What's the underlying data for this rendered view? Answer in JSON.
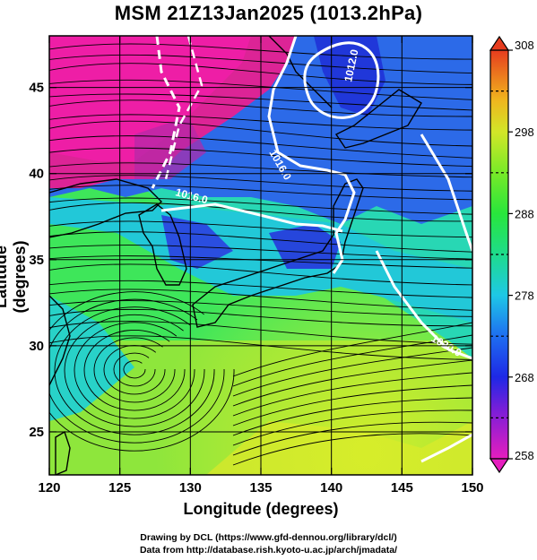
{
  "title": "MSM 21Z13Jan2025 (1013.2hPa)",
  "axes": {
    "xlabel": "Longitude (degrees)",
    "ylabel": "Latitude  (degrees)",
    "xlim": [
      120,
      150
    ],
    "ylim": [
      22.5,
      48
    ],
    "xticks": [
      "120",
      "125",
      "130",
      "135",
      "140",
      "145",
      "150"
    ],
    "yticks": [
      "25",
      "30",
      "35",
      "40",
      "45"
    ]
  },
  "colorbar": {
    "min": 258,
    "max": 308,
    "labels": [
      "308",
      "298",
      "288",
      "278",
      "268",
      "258"
    ]
  },
  "contours": {
    "labels": [
      "1012.0",
      "1016.0",
      "1016.0",
      "1020.0"
    ]
  },
  "credits": {
    "line1": "Drawing by DCL (https://www.gfd-dennou.org/library/dcl/)",
    "line2": "Data from http://database.rish.kyoto-u.ac.jp/arch/jmadata/"
  },
  "colors": {
    "cold": "#e8249a",
    "cool": "#2a5ee6",
    "mid": "#22c8b4",
    "warm": "#2ee43a",
    "hot": "#e6e62a"
  }
}
